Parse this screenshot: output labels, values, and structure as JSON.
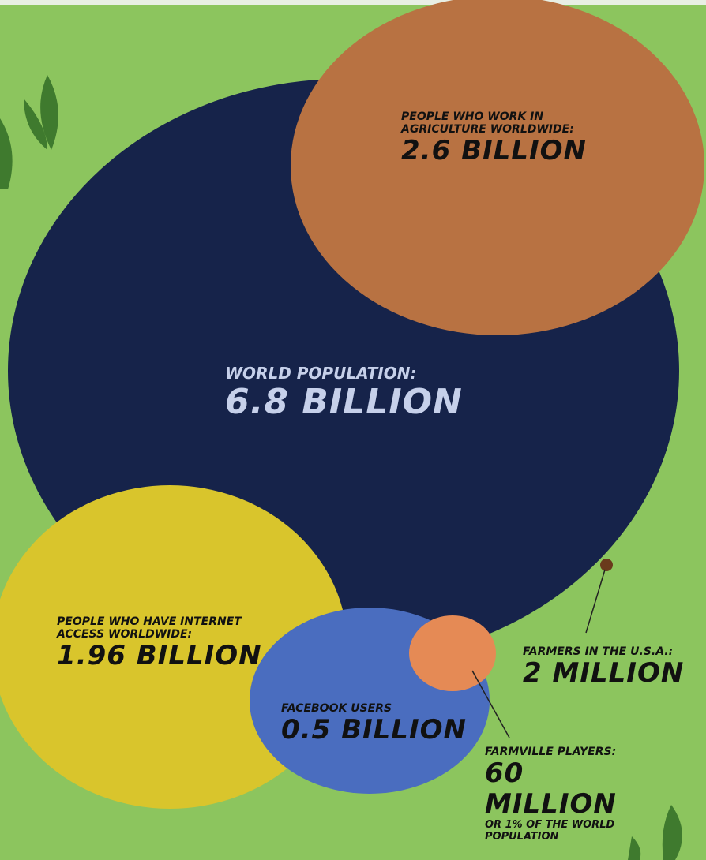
{
  "bubbles": [
    {
      "label": "PEOPLE WHO WORK IN AGRICULTURE WORLDWIDE:",
      "value": "2.6 BILLION"
    },
    {
      "label": "WORLD POPULATION:",
      "value": "6.8 BILLION"
    },
    {
      "label": "PEOPLE WHO HAVE INTERNET ACCESS WORLDWIDE:",
      "value": "1.96 BILLION"
    },
    {
      "label": "FACEBOOK USERS",
      "value": "0.5 BILLION"
    },
    {
      "label": "FARMERS IN THE U.S.A.:",
      "value": "2 MILLION"
    },
    {
      "label": "FARMVILLE PLAYERS:",
      "value": "60 MILLION",
      "note": "OR 1% OF THE WORLD POPULATION"
    }
  ]
}
